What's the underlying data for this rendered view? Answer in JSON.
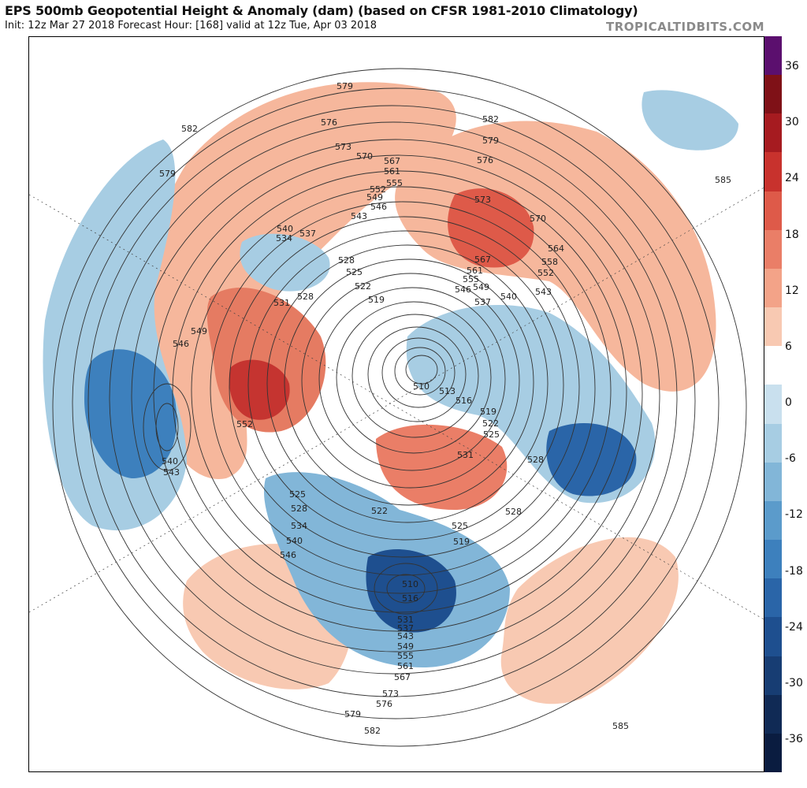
{
  "header": {
    "title": "EPS 500mb Geopotential Height & Anomaly (dam) (based on CFSR 1981-2010 Climatology)",
    "subtitle": "Init: 12z Mar 27 2018   Forecast Hour: [168]   valid at 12z Tue, Apr 03 2018",
    "brand": "TROPICALTIDBITS.COM"
  },
  "colorbar": {
    "labels": [
      "36",
      "30",
      "24",
      "18",
      "12",
      "6",
      "0",
      "-6",
      "-12",
      "-18",
      "-24",
      "-30",
      "-36"
    ],
    "colors": [
      "#5b0f6e",
      "#7f1117",
      "#a61b20",
      "#c8322d",
      "#de5a49",
      "#ea7e67",
      "#f3a388",
      "#f8c9b2",
      "#ffffff",
      "#c9e0ee",
      "#a7cde3",
      "#82b6d8",
      "#5b9bcb",
      "#3d80bd",
      "#2a65a8",
      "#1e4f8f",
      "#173d73",
      "#102a55",
      "#0a1c40"
    ]
  },
  "contour_labels": [
    "585",
    "582",
    "579",
    "576",
    "573",
    "570",
    "567",
    "564",
    "561",
    "558",
    "555",
    "552",
    "549",
    "546",
    "543",
    "540",
    "537",
    "534",
    "531",
    "528",
    "525",
    "522",
    "519",
    "516",
    "513",
    "510"
  ]
}
